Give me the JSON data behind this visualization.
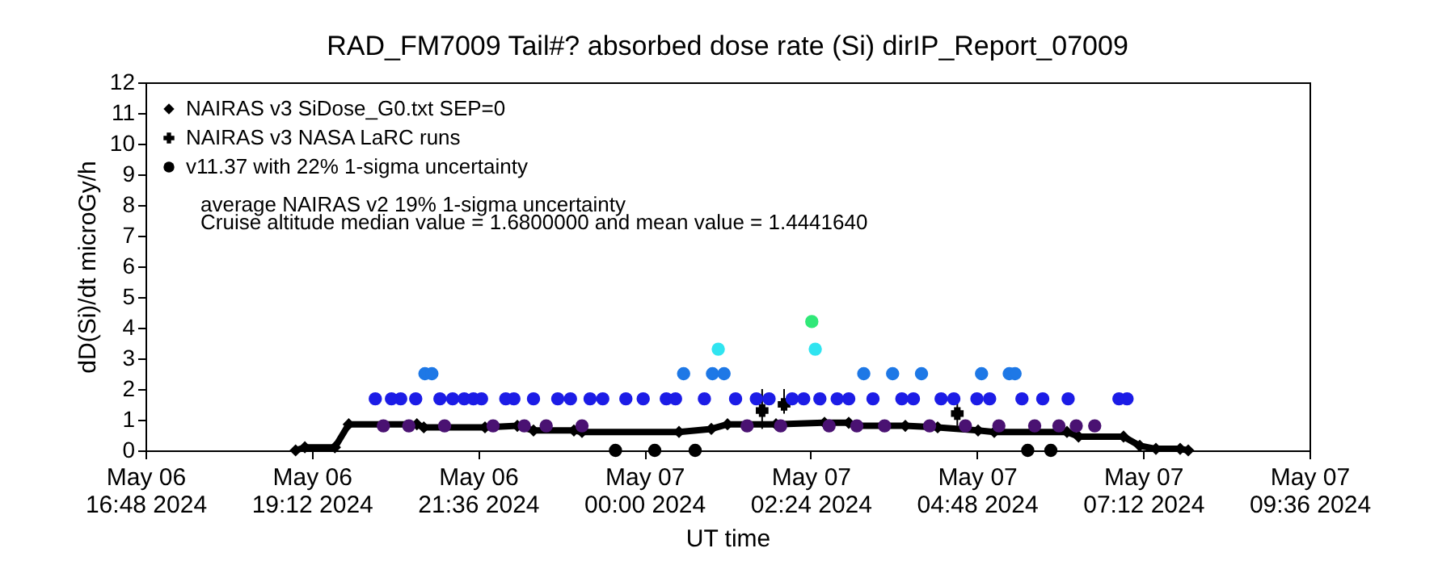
{
  "chart_data": {
    "type": "scatter",
    "title": "RAD_FM7009  Tail#? absorbed dose rate (Si) dirIP_Report_07009",
    "xlabel": "UT time",
    "ylabel": "dD(Si)/dt microGy/h",
    "xlim": [
      "2024-05-06T16:48",
      "2024-05-07T09:36"
    ],
    "xticks": [
      {
        "value": "2024-05-06T16:48",
        "label": "May 06\n16:48 2024"
      },
      {
        "value": "2024-05-06T19:12",
        "label": "May 06\n19:12 2024"
      },
      {
        "value": "2024-05-06T21:36",
        "label": "May 06\n21:36 2024"
      },
      {
        "value": "2024-05-07T00:00",
        "label": "May 07\n00:00 2024"
      },
      {
        "value": "2024-05-07T02:24",
        "label": "May 07\n02:24 2024"
      },
      {
        "value": "2024-05-07T04:48",
        "label": "May 07\n04:48 2024"
      },
      {
        "value": "2024-05-07T07:12",
        "label": "May 07\n07:12 2024"
      },
      {
        "value": "2024-05-07T09:36",
        "label": "May 07\n09:36 2024"
      }
    ],
    "ylim": [
      0,
      12
    ],
    "yticks": [
      0,
      1,
      2,
      3,
      4,
      5,
      6,
      7,
      8,
      9,
      10,
      11,
      12
    ],
    "grid": false,
    "legend": "top left",
    "annotations": [
      "average NAIRAS v2 19% 1-sigma uncertainty",
      "Cruise altitude median value = 1.6800000 and mean value = 1.4441640"
    ],
    "series": [
      {
        "name": "NAIRAS v3 SiDose_G0.txt SEP=0",
        "type": "line",
        "marker": "diamond",
        "color": "#000000",
        "x": [
          "2024-05-06T18:58",
          "2024-05-06T19:06",
          "2024-05-06T19:32",
          "2024-05-06T19:44",
          "2024-05-06T20:43",
          "2024-05-06T20:49",
          "2024-05-06T21:42",
          "2024-05-06T22:10",
          "2024-05-06T22:24",
          "2024-05-06T22:59",
          "2024-05-06T23:06",
          "2024-05-07T00:30",
          "2024-05-07T00:58",
          "2024-05-07T01:12",
          "2024-05-07T01:54",
          "2024-05-07T02:36",
          "2024-05-07T02:57",
          "2024-05-07T03:04",
          "2024-05-07T03:46",
          "2024-05-07T04:14",
          "2024-05-07T04:49",
          "2024-05-07T05:03",
          "2024-05-07T06:06",
          "2024-05-07T06:16",
          "2024-05-07T06:55",
          "2024-05-07T07:09",
          "2024-05-07T07:23",
          "2024-05-07T07:44",
          "2024-05-07T07:51"
        ],
        "values": [
          0,
          0.1,
          0.1,
          0.85,
          0.85,
          0.75,
          0.75,
          0.8,
          0.65,
          0.65,
          0.6,
          0.6,
          0.7,
          0.85,
          0.85,
          0.9,
          0.9,
          0.8,
          0.8,
          0.75,
          0.65,
          0.6,
          0.6,
          0.45,
          0.45,
          0.15,
          0.05,
          0.05,
          0
        ]
      },
      {
        "name": "NAIRAS v3 NASA LaRC runs",
        "type": "scatter",
        "marker": "cross",
        "color": "#000000",
        "x": [
          "2024-05-07T01:42",
          "2024-05-07T02:01",
          "2024-05-07T04:31"
        ],
        "values": [
          1.3,
          1.5,
          1.2
        ],
        "errors": [
          [
            0.7,
            2.0
          ],
          [
            1.2,
            2.0
          ],
          [
            0.8,
            1.7
          ]
        ]
      },
      {
        "name": "v11.37 with 22% 1-sigma uncertainty",
        "type": "scatter",
        "marker": "circle",
        "color": "#1c1ce6",
        "x": [
          "2024-05-06T20:07",
          "2024-05-06T20:14",
          "2024-05-06T20:21",
          "2024-05-06T20:29",
          "2024-05-06T20:36",
          "2024-05-06T20:42",
          "2024-05-06T20:50",
          "2024-05-06T20:56",
          "2024-05-06T21:03",
          "2024-05-06T21:07",
          "2024-05-06T21:14",
          "2024-05-06T21:24",
          "2024-05-06T21:32",
          "2024-05-06T21:39",
          "2024-05-06T21:49",
          "2024-05-06T22:00",
          "2024-05-06T22:07",
          "2024-05-06T22:16",
          "2024-05-06T22:24",
          "2024-05-06T22:35",
          "2024-05-06T22:45",
          "2024-05-06T22:56",
          "2024-05-06T23:06",
          "2024-05-06T23:13",
          "2024-05-06T23:24",
          "2024-05-06T23:35",
          "2024-05-06T23:44",
          "2024-05-06T23:59",
          "2024-05-07T00:09",
          "2024-05-07T00:19",
          "2024-05-07T00:27",
          "2024-05-07T00:34",
          "2024-05-07T00:44",
          "2024-05-07T00:52",
          "2024-05-07T00:59",
          "2024-05-07T01:04",
          "2024-05-07T01:09",
          "2024-05-07T01:19",
          "2024-05-07T01:29",
          "2024-05-07T01:37",
          "2024-05-07T01:48",
          "2024-05-07T01:58",
          "2024-05-07T02:08",
          "2024-05-07T02:18",
          "2024-05-07T02:25",
          "2024-05-07T02:28",
          "2024-05-07T02:32",
          "2024-05-07T02:40",
          "2024-05-07T02:47",
          "2024-05-07T02:57",
          "2024-05-07T03:04",
          "2024-05-07T03:10",
          "2024-05-07T03:18",
          "2024-05-07T03:28",
          "2024-05-07T03:35",
          "2024-05-07T03:43",
          "2024-05-07T03:53",
          "2024-05-07T04:00",
          "2024-05-07T04:07",
          "2024-05-07T04:17",
          "2024-05-07T04:28",
          "2024-05-07T04:38",
          "2024-05-07T04:48",
          "2024-05-07T04:52",
          "2024-05-07T04:59",
          "2024-05-07T05:07",
          "2024-05-07T05:16",
          "2024-05-07T05:21",
          "2024-05-07T05:27",
          "2024-05-07T05:32",
          "2024-05-07T05:38",
          "2024-05-07T05:45",
          "2024-05-07T05:52",
          "2024-05-07T05:59",
          "2024-05-07T06:07",
          "2024-05-07T06:14",
          "2024-05-07T06:30",
          "2024-05-07T06:51",
          "2024-05-07T06:58"
        ],
        "values": [
          1.68,
          0.8,
          1.68,
          1.68,
          0.8,
          1.68,
          2.5,
          2.5,
          1.68,
          0.8,
          1.68,
          1.68,
          1.68,
          1.68,
          0.8,
          1.68,
          1.68,
          0.8,
          1.68,
          0.8,
          1.68,
          1.68,
          0.8,
          1.68,
          1.68,
          0,
          1.68,
          1.68,
          0,
          1.68,
          1.68,
          2.5,
          0,
          1.68,
          2.5,
          3.3,
          2.5,
          1.68,
          0.8,
          1.68,
          1.68,
          0.8,
          1.68,
          1.68,
          4.2,
          3.3,
          1.68,
          0.8,
          1.68,
          1.68,
          0.8,
          2.5,
          1.68,
          0.8,
          2.5,
          1.68,
          1.68,
          2.5,
          0.8,
          1.68,
          1.68,
          0.8,
          1.68,
          2.5,
          1.68,
          0.8,
          2.5,
          2.5,
          1.68,
          0,
          0.8,
          1.68,
          0,
          0.8,
          1.68,
          0.8,
          0.8,
          1.68,
          1.68
        ],
        "colors": [
          "#1c1ce6",
          "#4a1272",
          "#1c1ce6",
          "#1c1ce6",
          "#4a1272",
          "#1c1ce6",
          "#1e78e6",
          "#1e78e6",
          "#1c1ce6",
          "#4a1272",
          "#1c1ce6",
          "#1c1ce6",
          "#1c1ce6",
          "#1c1ce6",
          "#4a1272",
          "#1c1ce6",
          "#1c1ce6",
          "#4a1272",
          "#1c1ce6",
          "#4a1272",
          "#1c1ce6",
          "#1c1ce6",
          "#4a1272",
          "#1c1ce6",
          "#1c1ce6",
          "#000000",
          "#1c1ce6",
          "#1c1ce6",
          "#000000",
          "#1c1ce6",
          "#1c1ce6",
          "#1e78e6",
          "#000000",
          "#1c1ce6",
          "#1e78e6",
          "#30e4f0",
          "#1e78e6",
          "#1c1ce6",
          "#4a1272",
          "#1c1ce6",
          "#1c1ce6",
          "#4a1272",
          "#1c1ce6",
          "#1c1ce6",
          "#30e878",
          "#30e4f0",
          "#1c1ce6",
          "#4a1272",
          "#1c1ce6",
          "#1c1ce6",
          "#4a1272",
          "#1e78e6",
          "#1c1ce6",
          "#4a1272",
          "#1e78e6",
          "#1c1ce6",
          "#1c1ce6",
          "#1e78e6",
          "#4a1272",
          "#1c1ce6",
          "#1c1ce6",
          "#4a1272",
          "#1c1ce6",
          "#1e78e6",
          "#1c1ce6",
          "#4a1272",
          "#1e78e6",
          "#1e78e6",
          "#1c1ce6",
          "#000000",
          "#4a1272",
          "#1c1ce6",
          "#000000",
          "#4a1272",
          "#1c1ce6",
          "#4a1272",
          "#4a1272",
          "#1c1ce6",
          "#1c1ce6"
        ]
      }
    ]
  }
}
